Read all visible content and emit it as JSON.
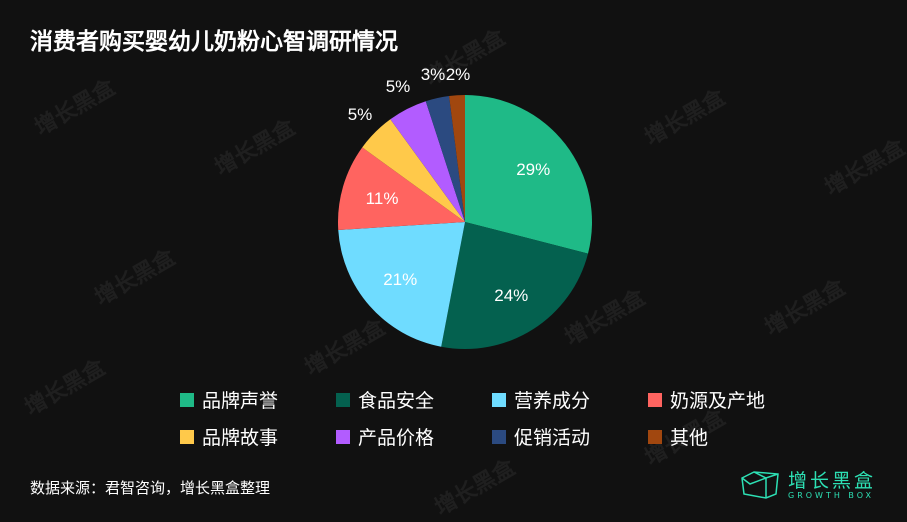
{
  "title": "消费者购买婴幼儿奶粉心智调研情况",
  "chart_data": {
    "type": "pie",
    "title": "消费者购买婴幼儿奶粉心智调研情况",
    "categories": [
      "品牌声誉",
      "食品安全",
      "营养成分",
      "奶源及产地",
      "品牌故事",
      "产品价格",
      "促销活动",
      "其他"
    ],
    "values": [
      29,
      24,
      21,
      11,
      5,
      5,
      3,
      2
    ],
    "labels": [
      "29%",
      "24%",
      "21%",
      "11%",
      "5%",
      "5%",
      "3%",
      "2%"
    ],
    "colors": [
      "#1fba87",
      "#04614f",
      "#6fdcff",
      "#ff6460",
      "#ffc94a",
      "#b25cff",
      "#2b4a80",
      "#a1470f"
    ],
    "start": "top",
    "direction": "clockwise",
    "legend": "bottom"
  },
  "source": "数据来源：君智咨询，增长黑盒整理",
  "logo": {
    "cn": "增长黑盒",
    "en": "GROWTH BOX"
  },
  "watermark": "增长黑盒"
}
